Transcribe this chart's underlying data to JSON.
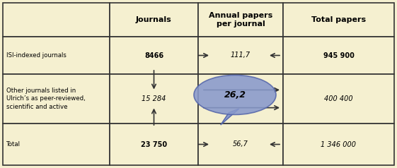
{
  "background_color": "#f5f0d0",
  "border_color": "#333333",
  "header_row": [
    "",
    "Journals",
    "Annual papers\nper journal",
    "Total papers"
  ],
  "rows": [
    {
      "label": "ISI-indexed journals",
      "journals": "8466",
      "annual": "111,7",
      "total": "945 900",
      "journals_bold": true,
      "annual_italic": true,
      "total_bold": true,
      "total_italic": false
    },
    {
      "label": "Other journals listed in\nUlrich’s as peer-reviewed,\nscientific and active",
      "journals": "15 284",
      "annual": "26,2",
      "total": "400 400",
      "journals_bold": false,
      "annual_italic": true,
      "total_bold": false,
      "total_italic": true
    },
    {
      "label": "Total",
      "journals": "23 750",
      "annual": "56,7",
      "total": "1 346 000",
      "journals_bold": true,
      "annual_italic": true,
      "total_bold": false,
      "total_italic": true
    }
  ],
  "bubble_color": "#8899cc",
  "bubble_edge_color": "#5566aa",
  "arrow_color": "#333333"
}
